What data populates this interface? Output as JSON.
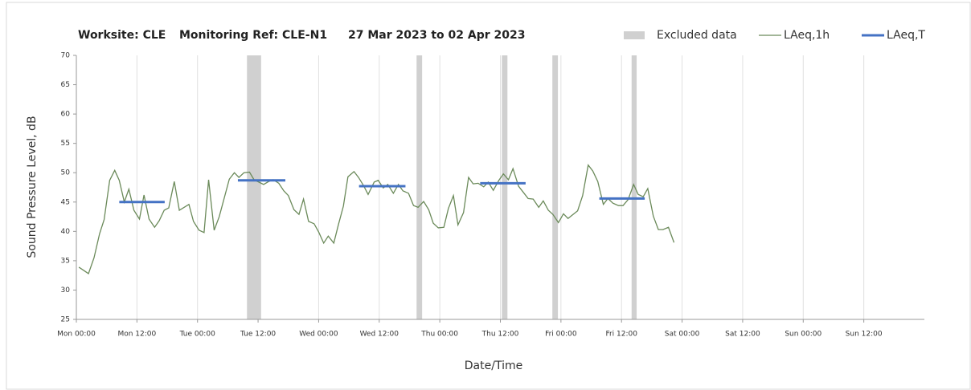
{
  "chart_data": {
    "type": "line",
    "title": [
      "Worksite: CLE",
      "Monitoring Ref: CLE-N1",
      "27 Mar 2023 to 02 Apr 2023"
    ],
    "xlabel": "Date/Time",
    "ylabel": "Sound Pressure Level, dB",
    "xlim": [
      0,
      168
    ],
    "ylim": [
      25,
      70
    ],
    "yticks": [
      25,
      30,
      35,
      40,
      45,
      50,
      55,
      60,
      65,
      70
    ],
    "xticks": [
      {
        "value": 0,
        "label": "Mon 00:00"
      },
      {
        "value": 12,
        "label": "Mon 12:00"
      },
      {
        "value": 24,
        "label": "Tue 00:00"
      },
      {
        "value": 36,
        "label": "Tue 12:00"
      },
      {
        "value": 48,
        "label": "Wed 00:00"
      },
      {
        "value": 60,
        "label": "Wed 12:00"
      },
      {
        "value": 72,
        "label": "Thu 00:00"
      },
      {
        "value": 84,
        "label": "Thu 12:00"
      },
      {
        "value": 96,
        "label": "Fri 00:00"
      },
      {
        "value": 108,
        "label": "Fri 12:00"
      },
      {
        "value": 120,
        "label": "Sat 00:00"
      },
      {
        "value": 132,
        "label": "Sat 12:00"
      },
      {
        "value": 144,
        "label": "Sun 00:00"
      },
      {
        "value": 156,
        "label": "Sun 12:00"
      }
    ],
    "xgrid": true,
    "excluded": {
      "name": "Excluded data",
      "color": "#d0d0d0",
      "ranges": [
        {
          "start": 33.8,
          "end": 36.6
        },
        {
          "start": 67.4,
          "end": 68.5
        },
        {
          "start": 84.3,
          "end": 85.4
        },
        {
          "start": 94.3,
          "end": 95.4
        },
        {
          "start": 110,
          "end": 111
        }
      ]
    },
    "series": [
      {
        "name": "LAeq,1h",
        "color": "#6b8a5a",
        "x": [
          0.5,
          2.4,
          3.5,
          4.6,
          5.5,
          6.6,
          7.6,
          8.5,
          9.5,
          10.4,
          11.4,
          12.5,
          13.4,
          14.4,
          15.5,
          16.4,
          17.4,
          18.3,
          19.4,
          20.4,
          22.3,
          23.2,
          24.3,
          25.3,
          26.2,
          27.3,
          28.3,
          30.3,
          31.3,
          32.2,
          33.2,
          34.3,
          35.2,
          37.1,
          38.1,
          39,
          40.1,
          41.1,
          42,
          43.1,
          44.1,
          45,
          46,
          47.1,
          48,
          49,
          49.9,
          51,
          51.9,
          52.9,
          53.8,
          55,
          55.9,
          56.9,
          57.8,
          59,
          59.8,
          60.8,
          61.7,
          62.8,
          63.8,
          64.7,
          65.8,
          66.8,
          67.7,
          68.8,
          69.8,
          70.7,
          71.7,
          72.8,
          73.7,
          74.7,
          75.6,
          76.7,
          77.7,
          78.6,
          79.6,
          80.7,
          81.6,
          82.6,
          83.7,
          84.6,
          85.6,
          86.5,
          87.6,
          88.6,
          89.5,
          90.5,
          91.6,
          92.5,
          93.5,
          94.4,
          95.5,
          96.5,
          97.4,
          99.3,
          100.3,
          101.4,
          102.3,
          103.3,
          104.4,
          105.3,
          106.3,
          107.4,
          108.3,
          109.3,
          110.4,
          111.3,
          112.3,
          113.2,
          114.3,
          115.3,
          116.2,
          117.3,
          118.4
        ],
        "values": [
          33.9,
          32.8,
          35.5,
          39.6,
          42,
          48.7,
          50.4,
          48.7,
          45,
          47.2,
          43.6,
          42.1,
          46.2,
          42.1,
          40.7,
          41.8,
          43.6,
          44,
          48.5,
          43.6,
          44.6,
          41.7,
          40.2,
          39.8,
          48.8,
          40.2,
          42.5,
          48.9,
          50,
          49.2,
          50,
          50.1,
          48.8,
          48,
          48.5,
          48.8,
          48.2,
          46.9,
          46.1,
          43.7,
          42.9,
          45.5,
          41.7,
          41.3,
          39.9,
          38,
          39.2,
          38,
          41.1,
          44.3,
          49.3,
          50.2,
          49.2,
          47.8,
          46.3,
          48.4,
          48.7,
          47.4,
          48,
          46.5,
          48,
          46.9,
          46.5,
          44.4,
          44.1,
          45.1,
          43.7,
          41.4,
          40.6,
          40.7,
          43.9,
          46.1,
          41.1,
          43.2,
          49.2,
          48.1,
          48.2,
          47.6,
          48.4,
          47,
          48.7,
          49.8,
          48.8,
          50.7,
          47.7,
          46.6,
          45.6,
          45.5,
          44.1,
          45.2,
          43.6,
          42.9,
          41.5,
          43,
          42.2,
          43.5,
          46.1,
          51.3,
          50.3,
          48.5,
          44.6,
          45.6,
          44.8,
          44.4,
          44.4,
          45.4,
          48,
          46.3,
          45.9,
          47.3,
          42.6,
          40.3,
          40.3,
          40.7,
          38.1
        ]
      },
      {
        "name": "LAeq,T",
        "color": "#4472c4",
        "segments": [
          {
            "start": 8.5,
            "end": 17.5,
            "value": 45
          },
          {
            "start": 32,
            "end": 41.4,
            "value": 48.7
          },
          {
            "start": 56,
            "end": 65.2,
            "value": 47.7
          },
          {
            "start": 80,
            "end": 89,
            "value": 48.2
          },
          {
            "start": 103.6,
            "end": 112.6,
            "value": 45.6
          }
        ]
      }
    ]
  }
}
